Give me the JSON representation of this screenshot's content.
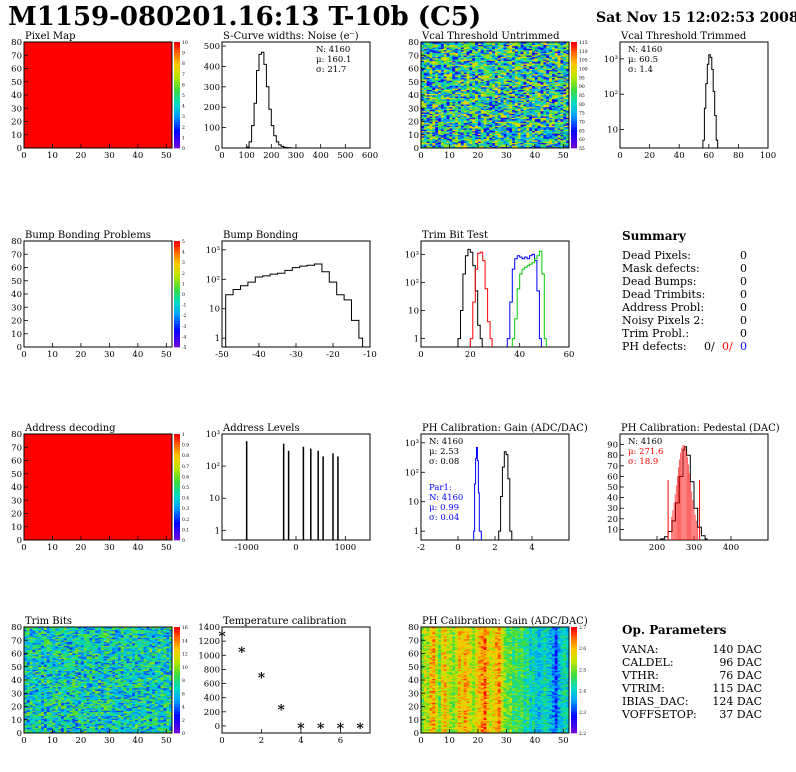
{
  "title": "M1159-080201.16:13 T-10b (C5)",
  "date": "Sat Nov 15 12:02:53 2008",
  "summary": {
    "title": "Summary",
    "rows": [
      {
        "label": "Dead Pixels:",
        "value": "0"
      },
      {
        "label": "Mask defects:",
        "value": "0"
      },
      {
        "label": "Dead Bumps:",
        "value": "0"
      },
      {
        "label": "Dead Trimbits:",
        "value": "0"
      },
      {
        "label": "Address Probl:",
        "value": "0"
      },
      {
        "label": "Noisy Pixels 2:",
        "value": "0"
      },
      {
        "label": "Trim Probl.:",
        "value": "0"
      }
    ],
    "ph_label": "PH defects:",
    "ph_values": [
      {
        "value": "0/",
        "color": "#000000"
      },
      {
        "value": "0/",
        "color": "#ff0000"
      },
      {
        "value": "0",
        "color": "#0000ff"
      }
    ]
  },
  "op_params": {
    "title": "Op. Parameters",
    "rows": [
      {
        "label": "VANA:",
        "value": "140 DAC"
      },
      {
        "label": "CALDEL:",
        "value": "96 DAC"
      },
      {
        "label": "VTHR:",
        "value": "76 DAC"
      },
      {
        "label": "VTRIM:",
        "value": "115 DAC"
      },
      {
        "label": "IBIAS_DAC:",
        "value": "124 DAC"
      },
      {
        "label": "VOFFSETOP:",
        "value": "37 DAC"
      }
    ]
  },
  "colors": {
    "dead_map": "#ff0000",
    "gain_fit": "#ff0000",
    "par1": "#0000ff"
  },
  "chart_data": [
    {
      "id": "pixel_map",
      "type": "heatmap",
      "title": "Pixel Map",
      "xlim": [
        0,
        52
      ],
      "ylim": [
        0,
        80
      ],
      "xticks": [
        0,
        10,
        20,
        30,
        40,
        50
      ],
      "yticks": [
        0,
        10,
        20,
        30,
        40,
        50,
        60,
        70,
        80
      ],
      "fill": "uniform",
      "level": 10,
      "zlim": [
        0,
        10
      ],
      "zticks": [
        "10",
        "9",
        "8",
        "7",
        "6",
        "5",
        "4",
        "3",
        "2",
        "1",
        "0"
      ]
    },
    {
      "id": "scurve",
      "type": "line",
      "title": "S-Curve widths: Noise (e⁻)",
      "xlim": [
        0,
        600
      ],
      "ylim": [
        0,
        520
      ],
      "xticks": [
        0,
        100,
        200,
        300,
        400,
        500,
        600
      ],
      "yticks": [
        0,
        100,
        200,
        300,
        400,
        500
      ],
      "stats": [
        {
          "text": "N: 4160"
        },
        {
          "text": "μ: 160.1"
        },
        {
          "text": "σ: 21.7"
        }
      ],
      "series": [
        {
          "color": "#000000",
          "x": [
            100,
            110,
            120,
            130,
            140,
            150,
            160,
            170,
            180,
            190,
            200,
            210,
            220,
            230,
            240,
            250,
            260,
            270,
            280
          ],
          "y": [
            5,
            30,
            110,
            220,
            380,
            460,
            470,
            410,
            300,
            190,
            110,
            60,
            30,
            15,
            8,
            4,
            2,
            1,
            0
          ]
        }
      ]
    },
    {
      "id": "vcal_untrimmed",
      "type": "heatmap",
      "title": "Vcal Threshold Untrimmed",
      "xlim": [
        0,
        52
      ],
      "ylim": [
        0,
        80
      ],
      "xticks": [
        0,
        10,
        20,
        30,
        40,
        50
      ],
      "yticks": [
        0,
        10,
        20,
        30,
        40,
        50,
        60,
        70,
        80
      ],
      "fill": "noise",
      "level": 0.45,
      "spread": 0.35,
      "zlim": [
        50,
        115
      ],
      "zticks": [
        "115",
        "110",
        "105",
        "100",
        "95",
        "90",
        "85",
        "80",
        "75",
        "70",
        "65",
        "60",
        "55"
      ]
    },
    {
      "id": "vcal_trimmed",
      "type": "line",
      "title": "Vcal Threshold Trimmed",
      "xlim": [
        0,
        100
      ],
      "ylim": [
        3,
        3000
      ],
      "log": true,
      "xticks": [
        0,
        20,
        40,
        60,
        80,
        100
      ],
      "yticks": [
        10,
        100,
        1000
      ],
      "stats": [
        {
          "text": "N: 4160"
        },
        {
          "text": "μ: 60.5"
        },
        {
          "text": "σ: 1.4"
        }
      ],
      "series": [
        {
          "color": "#000000",
          "x": [
            55,
            56,
            57,
            58,
            59,
            60,
            61,
            62,
            63,
            64,
            65,
            66
          ],
          "y": [
            3,
            5,
            40,
            200,
            700,
            1300,
            1100,
            500,
            120,
            25,
            5,
            3
          ]
        }
      ]
    },
    {
      "id": "bump_problems",
      "type": "heatmap",
      "title": "Bump Bonding Problems",
      "xlim": [
        0,
        52
      ],
      "ylim": [
        0,
        80
      ],
      "xticks": [
        0,
        10,
        20,
        30,
        40,
        50
      ],
      "yticks": [
        0,
        10,
        20,
        30,
        40,
        50,
        60,
        70,
        80
      ],
      "fill": "empty",
      "zlim": [
        -5,
        5
      ],
      "zticks": [
        "5",
        "4",
        "3",
        "2",
        "1",
        "0",
        "-1",
        "-2",
        "-3",
        "-4",
        "-5"
      ]
    },
    {
      "id": "bump_bonding",
      "type": "line",
      "title": "Bump Bonding",
      "xlim": [
        -50,
        -10
      ],
      "ylim": [
        0.5,
        2000
      ],
      "log": true,
      "xticks": [
        -50,
        -40,
        -30,
        -20,
        -10
      ],
      "yticks": [
        1,
        10,
        100,
        1000
      ],
      "series": [
        {
          "color": "#000000",
          "x": [
            -49,
            -47,
            -45,
            -43,
            -41,
            -39,
            -37,
            -35,
            -33,
            -31,
            -29,
            -27,
            -25,
            -23,
            -21,
            -19,
            -17,
            -15,
            -13,
            -12
          ],
          "y": [
            30,
            45,
            60,
            80,
            120,
            130,
            150,
            160,
            200,
            250,
            280,
            300,
            330,
            180,
            80,
            30,
            20,
            4,
            1,
            0.5
          ]
        }
      ]
    },
    {
      "id": "trim_bit_test",
      "type": "line",
      "title": "Trim Bit Test",
      "xlim": [
        0,
        60
      ],
      "ylim": [
        0.5,
        3000
      ],
      "log": true,
      "xticks": [
        0,
        20,
        40,
        60
      ],
      "yticks": [
        1,
        10,
        100,
        1000
      ],
      "series": [
        {
          "color": "#000000",
          "x": [
            15,
            16,
            17,
            18,
            19,
            20,
            21,
            22,
            23,
            24
          ],
          "y": [
            1,
            10,
            200,
            900,
            1500,
            1200,
            400,
            50,
            3,
            1
          ]
        },
        {
          "color": "#ff0000",
          "x": [
            20,
            21,
            22,
            23,
            24,
            25,
            26,
            27,
            28
          ],
          "y": [
            1,
            20,
            300,
            1100,
            1200,
            600,
            60,
            4,
            1
          ]
        },
        {
          "color": "#0000ff",
          "x": [
            35,
            36,
            37,
            38,
            39,
            40,
            41,
            42,
            43,
            44,
            45,
            46,
            47,
            48
          ],
          "y": [
            1,
            20,
            300,
            700,
            900,
            800,
            700,
            800,
            700,
            900,
            1000,
            600,
            50,
            1
          ]
        },
        {
          "color": "#00cc00",
          "x": [
            37,
            38,
            39,
            40,
            41,
            42,
            43,
            44,
            45,
            46,
            47,
            48,
            49,
            50
          ],
          "y": [
            1,
            5,
            60,
            200,
            300,
            350,
            400,
            450,
            500,
            700,
            900,
            1300,
            200,
            1
          ]
        }
      ]
    },
    {
      "id": "address_decoding",
      "type": "heatmap",
      "title": "Address decoding",
      "xlim": [
        0,
        52
      ],
      "ylim": [
        0,
        80
      ],
      "xticks": [
        0,
        10,
        20,
        30,
        40,
        50
      ],
      "yticks": [
        0,
        10,
        20,
        30,
        40,
        50,
        60,
        70,
        80
      ],
      "fill": "uniform",
      "level": 1,
      "zlim": [
        0,
        1
      ],
      "zticks": [
        "1",
        "0.9",
        "0.8",
        "0.7",
        "0.6",
        "0.5",
        "0.4",
        "0.3",
        "0.2",
        "0.1",
        "0"
      ]
    },
    {
      "id": "address_levels",
      "type": "bar",
      "title": "Address Levels",
      "xlim": [
        -1500,
        1500
      ],
      "ylim": [
        0.5,
        1000
      ],
      "log": true,
      "xticks": [
        -1000,
        0,
        1000
      ],
      "yticks": [
        1,
        10,
        100,
        1000
      ],
      "x": [
        -1000,
        -250,
        -150,
        150,
        300,
        450,
        550,
        750,
        850
      ],
      "values": [
        600,
        500,
        300,
        400,
        350,
        300,
        200,
        250,
        200
      ]
    },
    {
      "id": "ph_gain",
      "type": "line",
      "title": "PH Calibration: Gain (ADC/DAC)",
      "xlim": [
        -2,
        6
      ],
      "ylim": [
        0.5,
        2000
      ],
      "log": true,
      "xticks": [
        -2,
        0,
        2,
        4
      ],
      "yticks": [
        1,
        10,
        100,
        1000
      ],
      "stats": [
        {
          "text": "N: 4160"
        },
        {
          "text": "μ: 2.53"
        },
        {
          "text": "σ: 0.08"
        }
      ],
      "stats2": [
        {
          "text": "Par1:"
        },
        {
          "text": "N: 4160"
        },
        {
          "text": "μ: 0.99"
        },
        {
          "text": "σ: 0.04"
        }
      ],
      "series": [
        {
          "color": "#000000",
          "x": [
            2.2,
            2.3,
            2.4,
            2.5,
            2.6,
            2.7,
            2.8
          ],
          "y": [
            1,
            15,
            150,
            500,
            400,
            60,
            1
          ]
        },
        {
          "color": "#0000ff",
          "x": [
            0.85,
            0.9,
            0.95,
            1.0,
            1.05,
            1.1,
            1.15
          ],
          "y": [
            1,
            40,
            300,
            700,
            250,
            20,
            1
          ]
        }
      ]
    },
    {
      "id": "ph_pedestal",
      "type": "line",
      "title": "PH Calibration: Pedestal (DAC)",
      "xlim": [
        100,
        500
      ],
      "ylim": [
        0,
        100
      ],
      "xticks": [
        200,
        300,
        400
      ],
      "yticks": [
        10,
        20,
        30,
        40,
        50,
        60,
        70,
        80,
        90
      ],
      "stats": [
        {
          "text": "N: 4160"
        },
        {
          "text": "μ: 271.6"
        },
        {
          "text": "σ: 18.9"
        }
      ],
      "series": [
        {
          "color": "#000000",
          "x": [
            210,
            220,
            230,
            240,
            250,
            260,
            270,
            275,
            280,
            290,
            300,
            310,
            320,
            330
          ],
          "y": [
            1,
            3,
            8,
            18,
            35,
            60,
            85,
            88,
            80,
            55,
            30,
            12,
            4,
            1
          ]
        }
      ]
    },
    {
      "id": "trim_bits",
      "type": "heatmap",
      "title": "Trim Bits",
      "xlim": [
        0,
        52
      ],
      "ylim": [
        0,
        80
      ],
      "xticks": [
        0,
        10,
        20,
        30,
        40,
        50
      ],
      "yticks": [
        0,
        10,
        20,
        30,
        40,
        50,
        60,
        70,
        80
      ],
      "fill": "noise",
      "level": 0.42,
      "spread": 0.22,
      "zlim": [
        0,
        16
      ],
      "zticks": [
        "16",
        "14",
        "12",
        "10",
        "8",
        "6",
        "4",
        "2",
        "0"
      ]
    },
    {
      "id": "temperature",
      "type": "scatter",
      "title": "Temperature calibration",
      "xlim": [
        0,
        7.5
      ],
      "ylim": [
        -100,
        1400
      ],
      "xticks": [
        0,
        2,
        4,
        6
      ],
      "yticks": [
        0,
        200,
        400,
        600,
        800,
        1000,
        1200,
        1400
      ],
      "series": [
        {
          "color": "#000000",
          "x": [
            0,
            1,
            2,
            3,
            4,
            5,
            6,
            7
          ],
          "y": [
            1260,
            1030,
            670,
            220,
            -40,
            -40,
            -40,
            -40
          ]
        }
      ]
    },
    {
      "id": "ph_gain_map",
      "type": "heatmap",
      "title": "PH Calibration: Gain (ADC/DAC)",
      "xlim": [
        0,
        52
      ],
      "ylim": [
        0,
        80
      ],
      "xticks": [
        0,
        10,
        20,
        30,
        40,
        50
      ],
      "yticks": [
        0,
        10,
        20,
        30,
        40,
        50,
        60,
        70,
        80
      ],
      "fill": "columns",
      "spread": 0.12,
      "zlim": [
        2.1,
        2.7
      ],
      "zticks": [
        "2.7",
        "2.6",
        "2.5",
        "2.4",
        "2.3",
        "2.2"
      ],
      "column_levels": [
        0.6,
        0.7,
        0.65,
        0.8,
        0.85,
        0.7,
        0.6,
        0.75,
        0.8,
        0.7,
        0.65,
        0.6,
        0.7,
        0.8,
        0.75,
        0.85,
        0.8,
        0.7,
        0.65,
        0.75,
        0.8,
        0.85,
        0.9,
        0.8,
        0.7,
        0.75,
        0.8,
        0.85,
        0.7,
        0.6,
        0.55,
        0.6,
        0.5,
        0.55,
        0.5,
        0.55,
        0.45,
        0.5,
        0.4,
        0.45,
        0.4,
        0.35,
        0.4,
        0.45,
        0.4,
        0.35,
        0.3,
        0.2,
        0.35,
        0.4,
        0.45,
        0.4
      ]
    }
  ]
}
